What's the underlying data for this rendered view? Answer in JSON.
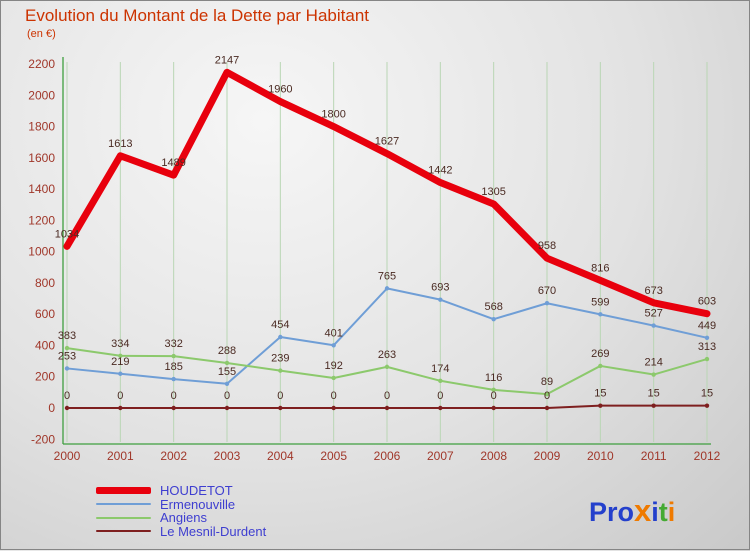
{
  "title": "Evolution du Montant de la Dette par Habitant",
  "subtitle": "(en €)",
  "title_color": "#cc3300",
  "legend_text_color": "#3e3ed0",
  "chart_data": {
    "type": "line",
    "title": "Evolution du Montant de la Dette par Habitant",
    "subtitle": "(en €)",
    "x": [
      2000,
      2001,
      2002,
      2003,
      2004,
      2005,
      2006,
      2007,
      2008,
      2009,
      2010,
      2011,
      2012
    ],
    "series": [
      {
        "name": "HOUDETOT",
        "color": "#e8000d",
        "width": 7,
        "values": [
          1034,
          1613,
          1489,
          2147,
          1960,
          1800,
          1627,
          1442,
          1305,
          958,
          816,
          673,
          603
        ]
      },
      {
        "name": "Ermenouville",
        "color": "#6f9ed6",
        "width": 2,
        "values": [
          253,
          219,
          185,
          155,
          454,
          401,
          765,
          693,
          568,
          670,
          599,
          527,
          449
        ]
      },
      {
        "name": "Angiens",
        "color": "#8cc96c",
        "width": 2,
        "values": [
          383,
          334,
          332,
          288,
          239,
          192,
          263,
          174,
          116,
          89,
          269,
          214,
          313
        ]
      },
      {
        "name": "Le Mesnil-Durdent",
        "color": "#7e1f1f",
        "width": 2,
        "values": [
          0,
          0,
          0,
          0,
          0,
          0,
          0,
          0,
          0,
          0,
          15,
          15,
          15
        ]
      }
    ],
    "ylim": [
      -200,
      2200
    ],
    "ytick_step": 200,
    "grid": "vertical",
    "legend_position": "bottom-left",
    "colors": {
      "grid": "#b9d6b4",
      "axis": "#3f9f3f",
      "tick": "#a0372a",
      "value_label": "#4a2a22"
    }
  },
  "logo": {
    "letters": [
      {
        "ch": "P",
        "color": "#2440cc"
      },
      {
        "ch": "r",
        "color": "#2440cc"
      },
      {
        "ch": "o",
        "color": "#2440cc"
      },
      {
        "ch": "x",
        "color": "#ef7a00"
      },
      {
        "ch": "i",
        "color": "#2440cc"
      },
      {
        "ch": "t",
        "color": "#44aa33"
      },
      {
        "ch": "i",
        "color": "#ef7a00"
      }
    ]
  }
}
